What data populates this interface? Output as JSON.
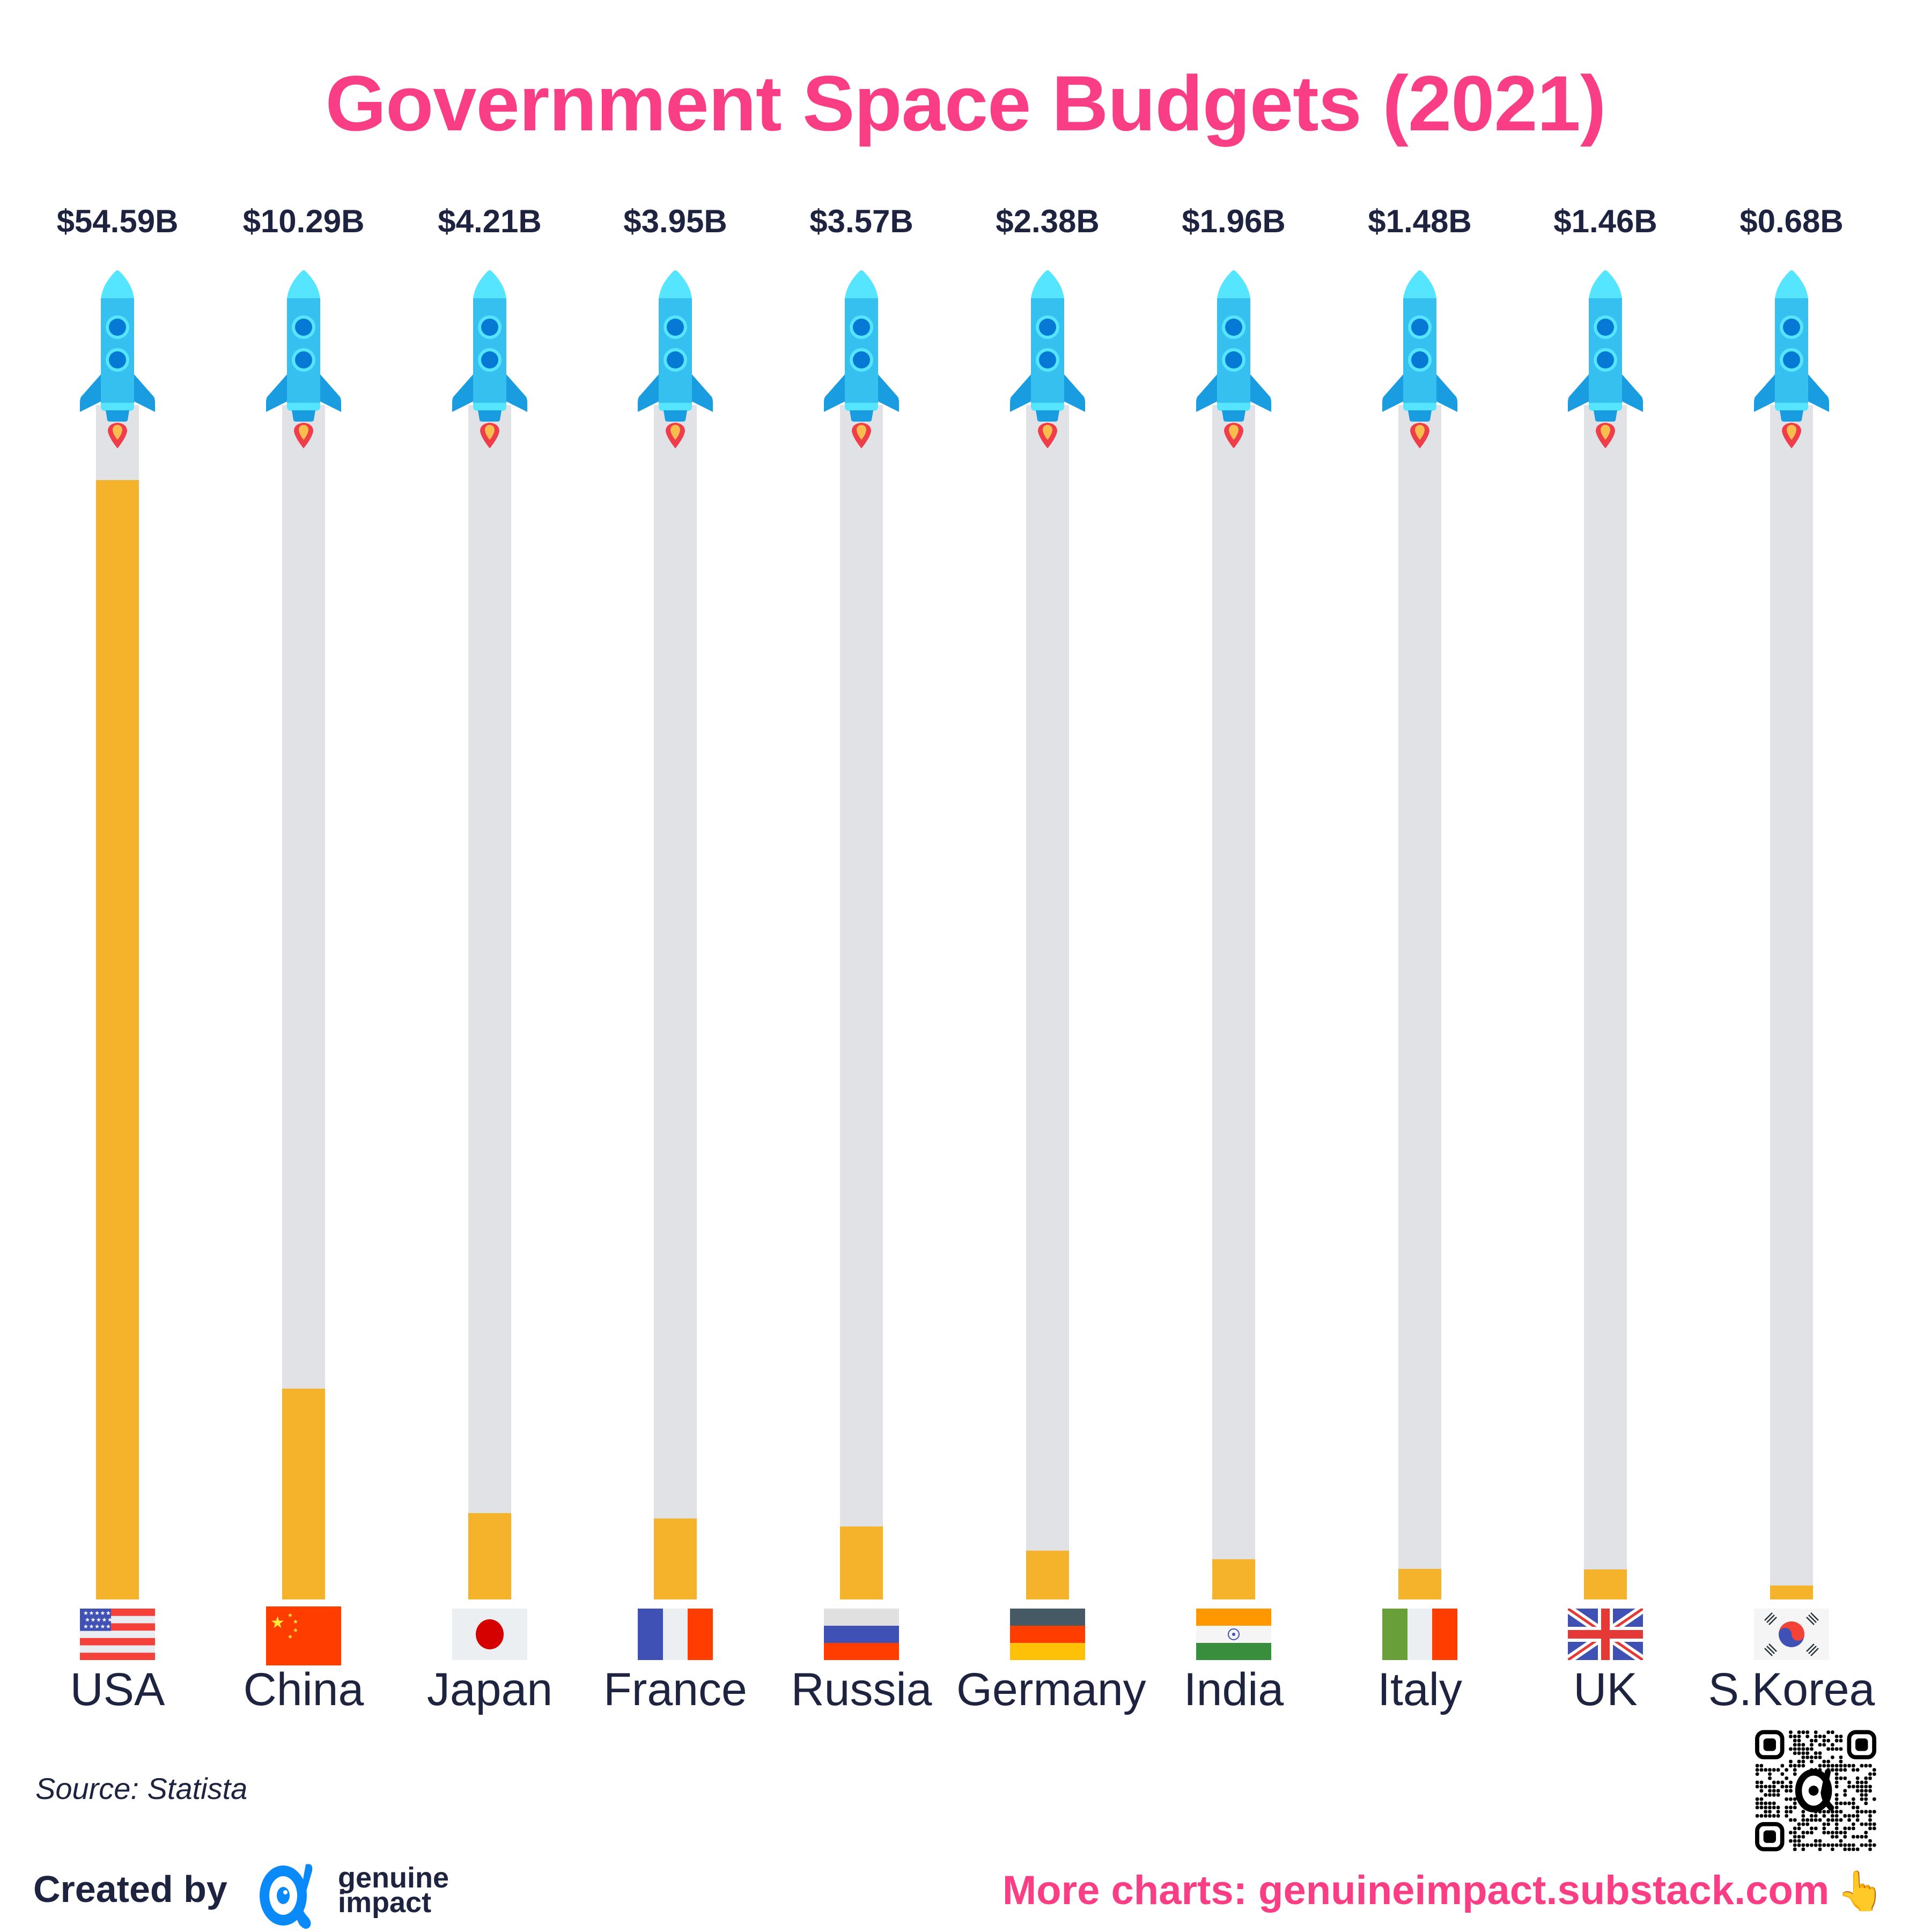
{
  "title": "Government Space Budgets (2021)",
  "colors": {
    "title": "#F93E85",
    "text": "#1E2340",
    "bar_fill": "#F5B32C",
    "bar_track": "#E1E2E6",
    "rocket_body": "#36C0F0",
    "rocket_nose": "#55E5FF",
    "rocket_fin": "#1A9CE0",
    "rocket_window": "#0679D4",
    "flame": "#EF3E4A",
    "brand_blue": "#0A8AF8"
  },
  "chart_data": {
    "type": "bar",
    "title": "Government Space Budgets (2021)",
    "xlabel": "",
    "ylabel": "",
    "unit": "USD billions",
    "categories": [
      "USA",
      "China",
      "Japan",
      "France",
      "Russia",
      "Germany",
      "India",
      "Italy",
      "UK",
      "S.Korea"
    ],
    "values": [
      54.59,
      10.29,
      4.21,
      3.95,
      3.57,
      2.38,
      1.96,
      1.48,
      1.46,
      0.68
    ],
    "value_labels": [
      "$54.59B",
      "$10.29B",
      "$4.21B",
      "$3.95B",
      "$3.57B",
      "$2.38B",
      "$1.96B",
      "$1.48B",
      "$1.46B",
      "$0.68B"
    ],
    "flags": [
      "us-flag",
      "china-flag",
      "japan-flag",
      "france-flag",
      "russia-flag",
      "germany-flag",
      "india-flag",
      "italy-flag",
      "uk-flag",
      "south-korea-flag"
    ],
    "ylim": [
      0,
      54.59
    ],
    "grid": false,
    "legend": "none"
  },
  "footer": {
    "source": "Source: Statista",
    "created_by": "Created by",
    "brand_line1": "genuine",
    "brand_line2": "impact",
    "more_charts": "More charts: genuineimpact.substack.com",
    "pointer_emoji": "👆"
  },
  "icons": {
    "rocket": "rocket-icon",
    "logo": "genuine-impact-logo",
    "qr": "qr-code"
  }
}
